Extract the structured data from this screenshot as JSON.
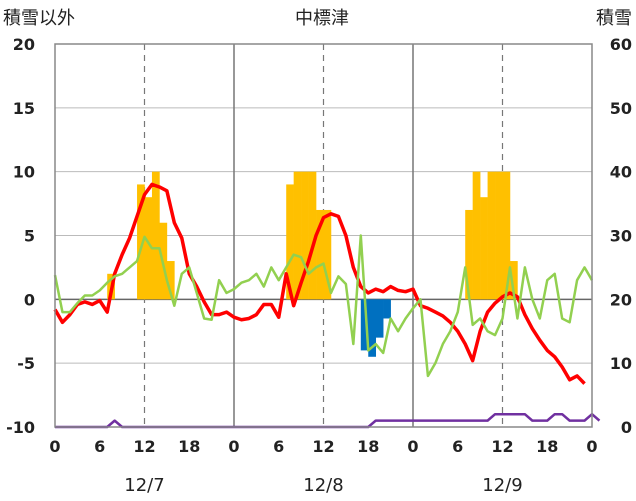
{
  "chart_data": {
    "type": "bar+line",
    "title": "中標津",
    "left_axis_title": "積雪以外",
    "right_axis_title": "積雪",
    "left_ylim": [
      -10,
      20
    ],
    "left_yticks": [
      20,
      15,
      10,
      5,
      0,
      -5,
      -10
    ],
    "right_ylim": [
      0,
      60
    ],
    "right_yticks": [
      60,
      50,
      40,
      30,
      20,
      10,
      0
    ],
    "x_hours_total": 72,
    "x_tick_labels": [
      "0",
      "6",
      "12",
      "18",
      "0",
      "6",
      "12",
      "18",
      "0",
      "6",
      "12",
      "18",
      "0"
    ],
    "day_labels": [
      "12/7",
      "12/8",
      "12/9"
    ],
    "grid": "vertical dashed lines at 12h, solid at day boundaries",
    "series": [
      {
        "name": "",
        "kind": "bar",
        "color": "#ffc000",
        "values": [
          {
            "h": 7.5,
            "v": 2
          },
          {
            "h": 11.5,
            "v": 9
          },
          {
            "h": 12.5,
            "v": 8
          },
          {
            "h": 13.5,
            "v": 10
          },
          {
            "h": 14.5,
            "v": 6
          },
          {
            "h": 15.5,
            "v": 3
          },
          {
            "h": 31.5,
            "v": 9
          },
          {
            "h": 32.5,
            "v": 10
          },
          {
            "h": 33.5,
            "v": 10
          },
          {
            "h": 34.5,
            "v": 10
          },
          {
            "h": 35.5,
            "v": 7
          },
          {
            "h": 36.5,
            "v": 7
          },
          {
            "h": 55.5,
            "v": 7
          },
          {
            "h": 56.5,
            "v": 10
          },
          {
            "h": 57.5,
            "v": 8
          },
          {
            "h": 58.5,
            "v": 10
          },
          {
            "h": 59.5,
            "v": 10
          },
          {
            "h": 60.5,
            "v": 10
          },
          {
            "h": 61.5,
            "v": 3
          }
        ]
      },
      {
        "name": "",
        "kind": "bar",
        "color": "#0070c0",
        "values": [
          {
            "h": 41.5,
            "v": -4
          },
          {
            "h": 42.5,
            "v": -4.5
          },
          {
            "h": 43.5,
            "v": -3
          },
          {
            "h": 44.5,
            "v": -1.5
          }
        ]
      },
      {
        "name": "",
        "kind": "line",
        "color": "#ff0000",
        "values": [
          -0.8,
          -1.8,
          -1.2,
          -0.4,
          -0.2,
          -0.4,
          -0.1,
          -1.0,
          2.0,
          3.5,
          4.8,
          6.5,
          8.2,
          9.0,
          8.8,
          8.5,
          6.0,
          4.8,
          2.0,
          1.0,
          -0.2,
          -1.2,
          -1.2,
          -1.0,
          -1.4,
          -1.6,
          -1.5,
          -1.2,
          -0.4,
          -0.4,
          -1.4,
          2.0,
          -0.5,
          1.3,
          3.0,
          5.0,
          6.4,
          6.7,
          6.5,
          5.0,
          2.5,
          1.0,
          0.5,
          0.8,
          0.6,
          1.0,
          0.7,
          0.6,
          0.8,
          -0.5,
          -0.7,
          -1.0,
          -1.3,
          -1.8,
          -2.5,
          -3.5,
          -4.8,
          -2.5,
          -1.0,
          -0.3,
          0.2,
          0.5,
          0.2,
          -1.2,
          -2.3,
          -3.2,
          -4.0,
          -4.5,
          -5.3,
          -6.3,
          -6.0,
          -6.6
        ]
      },
      {
        "name": "",
        "kind": "line",
        "color": "#92d050",
        "values": [
          1.9,
          -1.0,
          -1.0,
          -0.3,
          0.3,
          0.3,
          0.7,
          1.3,
          1.8,
          2.0,
          2.5,
          3.0,
          4.9,
          4.0,
          4.0,
          1.5,
          -0.5,
          2.0,
          2.5,
          0.5,
          -1.5,
          -1.6,
          1.5,
          0.5,
          0.8,
          1.3,
          1.5,
          2.0,
          1.0,
          2.5,
          1.5,
          2.5,
          3.5,
          3.3,
          2.0,
          2.5,
          2.8,
          0.5,
          1.8,
          1.2,
          -3.5,
          5.0,
          -4.0,
          -3.5,
          -4.2,
          -1.5,
          -2.5,
          -1.5,
          -0.7,
          0.0,
          -6.0,
          -5.0,
          -3.5,
          -2.5,
          -1.0,
          2.5,
          -2.0,
          -1.5,
          -2.5,
          -2.8,
          -1.5,
          2.5,
          -1.5,
          2.5,
          0.0,
          -1.5,
          1.5,
          2.0,
          -1.5,
          -1.8,
          1.5,
          2.5,
          1.5
        ]
      },
      {
        "name": "",
        "kind": "line",
        "axis": "right",
        "color": "#7030a0",
        "values": [
          0,
          0,
          0,
          0,
          0,
          0,
          0,
          0,
          1,
          0,
          0,
          0,
          0,
          0,
          0,
          0,
          0,
          0,
          0,
          0,
          0,
          0,
          0,
          0,
          0,
          0,
          0,
          0,
          0,
          0,
          0,
          0,
          0,
          0,
          0,
          0,
          0,
          0,
          0,
          0,
          0,
          0,
          0,
          1,
          1,
          1,
          1,
          1,
          1,
          1,
          1,
          1,
          1,
          1,
          1,
          1,
          1,
          1,
          1,
          2,
          2,
          2,
          2,
          2,
          1,
          1,
          1,
          2,
          2,
          1,
          1,
          1,
          2,
          1
        ]
      }
    ]
  }
}
